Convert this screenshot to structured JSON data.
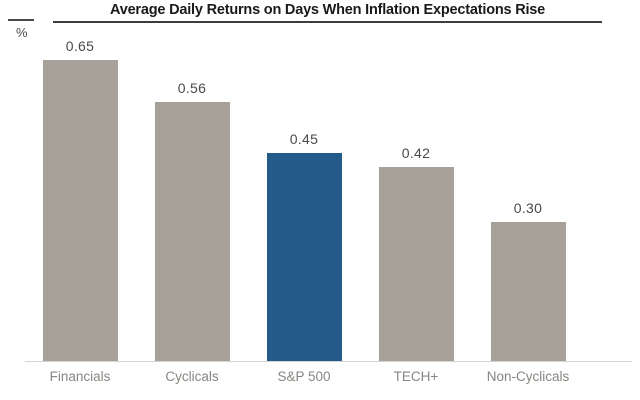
{
  "chart_data": {
    "type": "bar",
    "title": "Average Daily Returns on Days When Inflation Expectations Rise",
    "ylabel": "%",
    "xlabel": "",
    "categories": [
      "Financials",
      "Cyclicals",
      "S&P 500",
      "TECH+",
      "Non-Cyclicals"
    ],
    "values": [
      0.65,
      0.56,
      0.45,
      0.42,
      0.3
    ],
    "data_labels": [
      "0.65",
      "0.56",
      "0.45",
      "0.42",
      "0.30"
    ],
    "ylim": [
      0,
      0.7
    ],
    "grid": false,
    "legend_position": "none",
    "highlighted_category": "S&P 500",
    "bar_colors": [
      "#a8a19a",
      "#a8a19a",
      "#255b8a",
      "#a8a19a",
      "#a8a19a"
    ],
    "colors": {
      "bar_default": "#a8a19a",
      "bar_highlight": "#255b8a",
      "title_text": "#1a1a1a",
      "value_label_text": "#4a4a4a",
      "category_label_text": "#8a8580",
      "axis_line": "#d6d3d0",
      "title_rule": "#3d3d3d"
    }
  }
}
